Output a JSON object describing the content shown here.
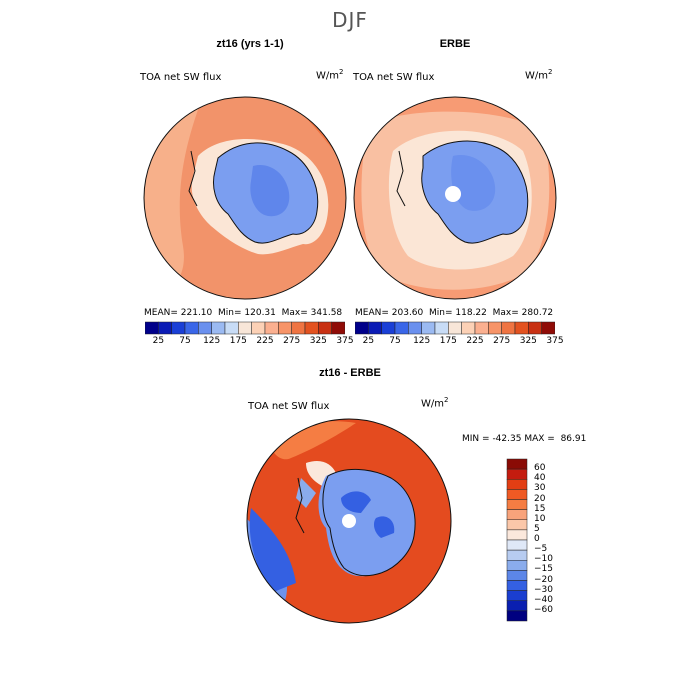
{
  "figure": {
    "title": "DJF"
  },
  "panels": [
    {
      "title": "zt16 (yrs 1-1)",
      "variable": "TOA net SW flux",
      "units": "W/m",
      "units_exp": "2",
      "stats": {
        "mean": "221.10",
        "min": "120.31",
        "max": "341.58"
      }
    },
    {
      "title": "ERBE",
      "variable": "TOA net SW flux",
      "units": "W/m",
      "units_exp": "2",
      "stats": {
        "mean": "203.60",
        "min": "118.22",
        "max": "280.72"
      }
    },
    {
      "title": "zt16 - ERBE",
      "variable": "TOA net SW flux",
      "units": "W/m",
      "units_exp": "2",
      "stats": {
        "min": "-42.35",
        "max": "86.91"
      }
    }
  ],
  "labels": {
    "mean": "MEAN=",
    "min": "Min=",
    "max": "Max=",
    "diff_min": "MIN =",
    "diff_max": "MAX ="
  },
  "colorbar_abs": {
    "colors": [
      "#00008a",
      "#0a1bb5",
      "#1a3fd6",
      "#3a66e8",
      "#6a90ee",
      "#9bbaf2",
      "#c8dcf6",
      "#f8e6d8",
      "#fcd1b6",
      "#fbb090",
      "#f79468",
      "#ef7442",
      "#e35220",
      "#c83012",
      "#8f0b06"
    ],
    "tick_labels": [
      "25",
      "75",
      "125",
      "175",
      "225",
      "275",
      "325",
      "375"
    ]
  },
  "colorbar_diff": {
    "colors_top_to_bottom": [
      "#8a0b05",
      "#c41c0f",
      "#e23e14",
      "#ef5a24",
      "#f57d43",
      "#f8a37b",
      "#fbc7a9",
      "#fbe8dc",
      "#dfe8f7",
      "#b7ccf1",
      "#8aacec",
      "#5c86e8",
      "#3460e2",
      "#1a3ed0",
      "#0a1fb0",
      "#000080"
    ],
    "tick_labels": [
      "60",
      "40",
      "30",
      "20",
      "15",
      "10",
      "5",
      "0",
      "-5",
      "-10",
      "-15",
      "-20",
      "-30",
      "-40",
      "-60"
    ]
  },
  "map_palette": {
    "ocean_model": "#f2936a",
    "ocean_obs": "#f9c0a2",
    "ice": "#7b9ef0",
    "ice_dark": "#5f86eb",
    "diff_warm": "#e44b1f",
    "diff_cool": "#6d93ec",
    "coast": "#111111"
  }
}
